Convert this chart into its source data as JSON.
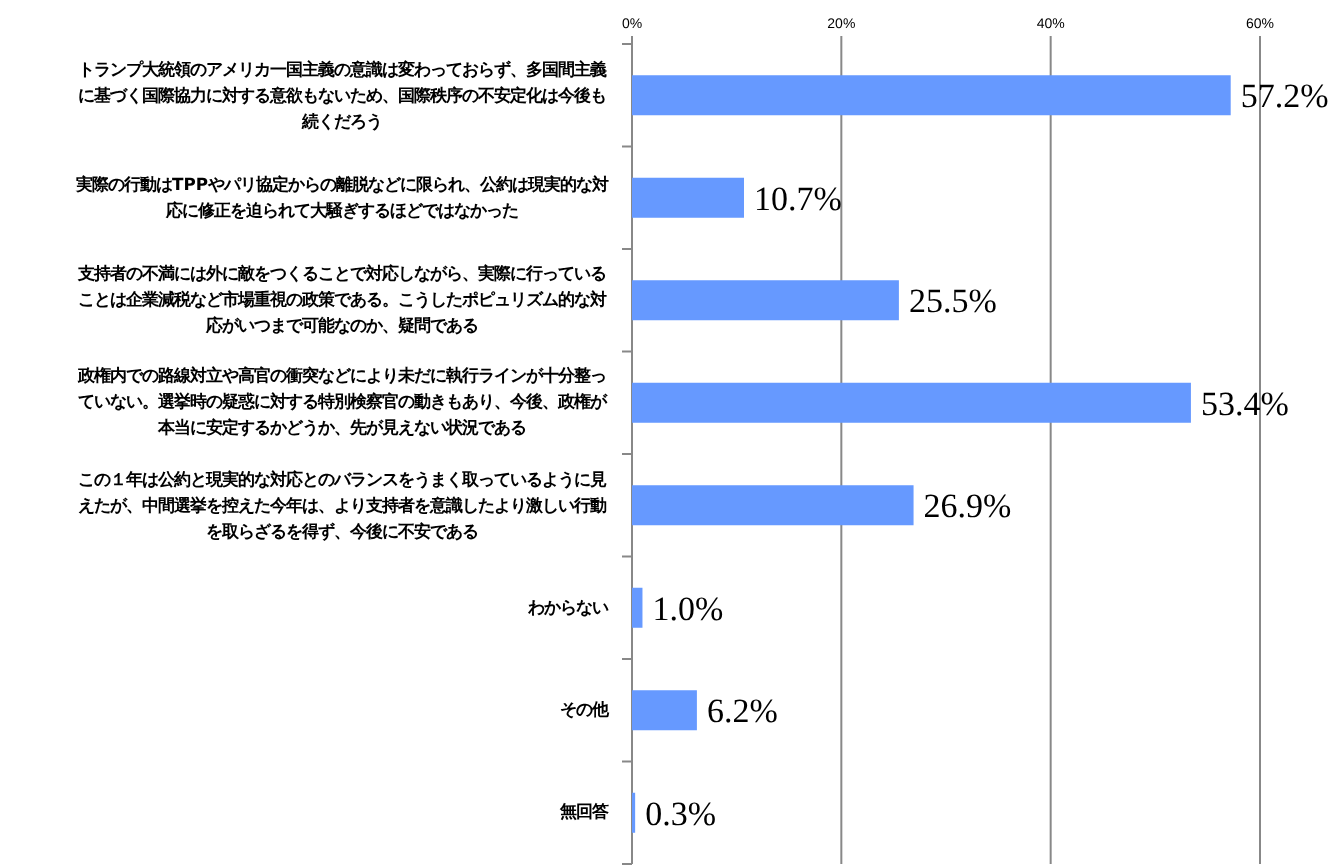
{
  "chart_data": {
    "type": "bar",
    "orientation": "horizontal",
    "categories": [
      "トランプ大統領のアメリカ一国主義の意識は変わっておらず、多国間主義に基づく国際協力に対する意欲もないため、国際秩序の不安定化は今後も続くだろう",
      "実際の行動はTPPやパリ協定からの離脱などに限られ、公約は現実的な対応に修正を迫られて大騒ぎするほどではなかった",
      "支持者の不満には外に敵をつくることで対応しながら、実際に行っていることは企業減税など市場重視の政策である。こうしたポピュリズム的な対応がいつまで可能なのか、疑問である",
      "政権内での路線対立や高官の衝突などにより未だに執行ラインが十分整っていない。選挙時の疑惑に対する特別検察官の動きもあり、今後、政権が本当に安定するかどうか、先が見えない状況である",
      "この１年は公約と現実的な対応とのバランスをうまく取っているように見えたが、中間選挙を控えた今年は、より支持者を意識したより激しい行動を取らざるを得ず、今後に不安である",
      "わからない",
      "その他",
      "無回答"
    ],
    "values": [
      57.2,
      10.7,
      25.5,
      53.4,
      26.9,
      1.0,
      6.2,
      0.3
    ],
    "value_labels": [
      "57.2%",
      "10.7%",
      "25.5%",
      "53.4%",
      "26.9%",
      "1.0%",
      "6.2%",
      "0.3%"
    ],
    "color": "#6699ff",
    "xlim": [
      0,
      60
    ],
    "xticks": [
      {
        "value": 0,
        "label": "0%"
      },
      {
        "value": 20,
        "label": "20%"
      },
      {
        "value": 40,
        "label": "40%"
      },
      {
        "value": 60,
        "label": "60%"
      }
    ],
    "grid": "x"
  }
}
